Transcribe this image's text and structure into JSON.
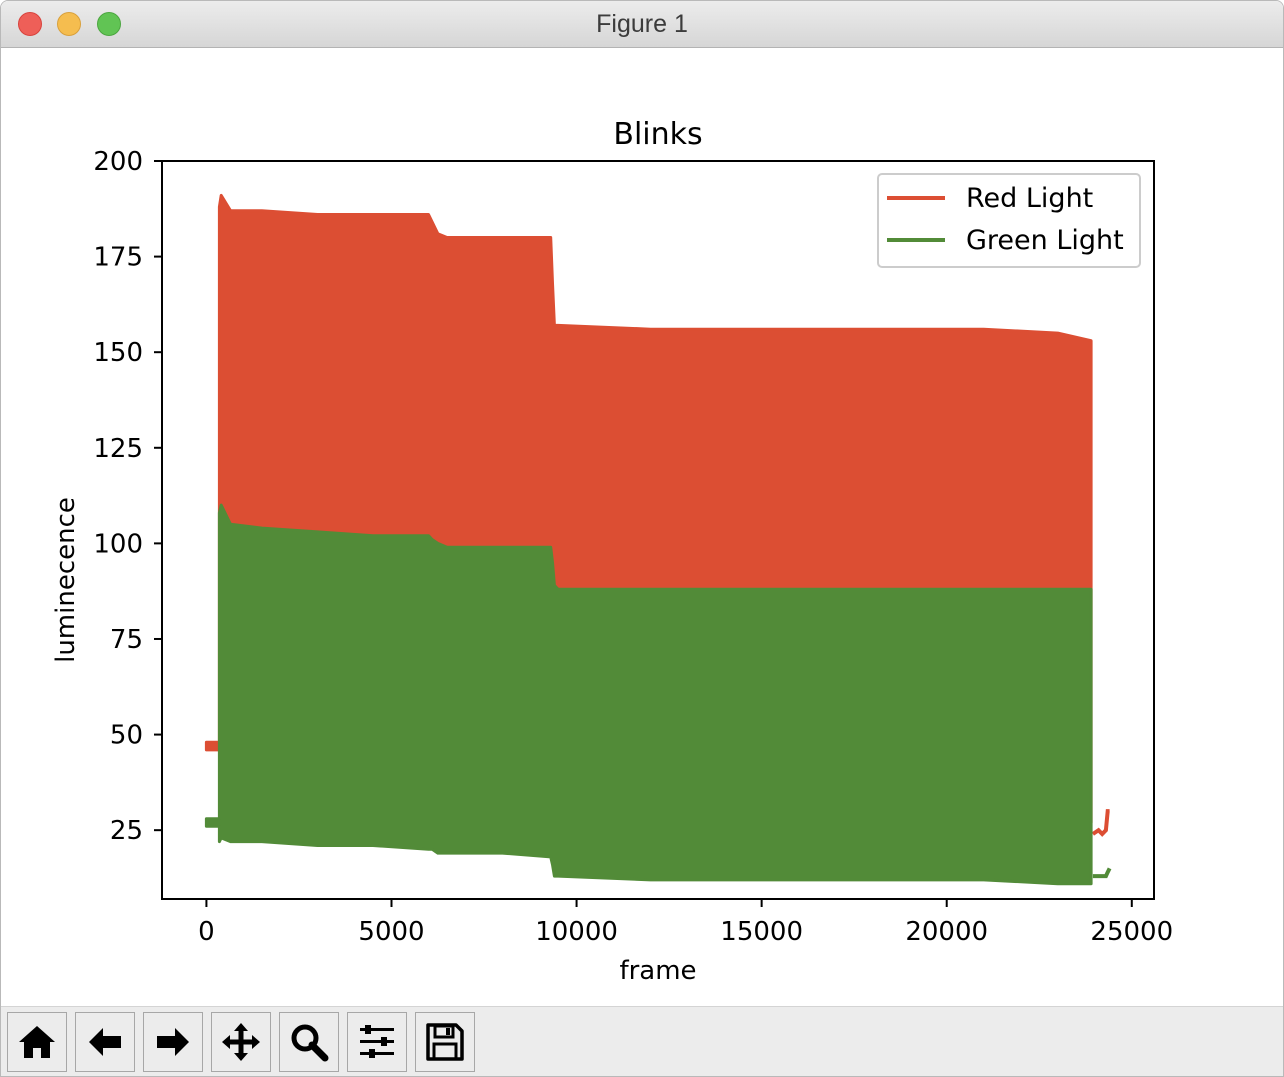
{
  "window": {
    "title": "Figure 1"
  },
  "toolbar": {
    "buttons": [
      {
        "name": "home-button",
        "icon": "home-icon"
      },
      {
        "name": "back-button",
        "icon": "arrow-left-icon"
      },
      {
        "name": "forward-button",
        "icon": "arrow-right-icon"
      },
      {
        "name": "pan-button",
        "icon": "move-icon"
      },
      {
        "name": "zoom-button",
        "icon": "magnifier-icon"
      },
      {
        "name": "configure-subplots-button",
        "icon": "sliders-icon"
      },
      {
        "name": "save-button",
        "icon": "floppy-disk-icon"
      }
    ]
  },
  "colors": {
    "red": "#dc4e33",
    "green": "#528b38",
    "axis": "#000000"
  },
  "chart_data": {
    "type": "area",
    "title": "Blinks",
    "xlabel": "frame",
    "ylabel": "luminecence",
    "xlim": [
      -1200,
      25600
    ],
    "ylim": [
      7,
      200
    ],
    "xticks": [
      0,
      5000,
      10000,
      15000,
      20000,
      25000
    ],
    "xtick_labels": [
      "0",
      "5000",
      "10000",
      "15000",
      "20000",
      "25000"
    ],
    "yticks": [
      25,
      50,
      75,
      100,
      125,
      150,
      175,
      200
    ],
    "ytick_labels": [
      "25",
      "50",
      "75",
      "100",
      "125",
      "150",
      "175",
      "200"
    ],
    "legend": {
      "position": "top-right",
      "entries": [
        "Red Light",
        "Green Light"
      ]
    },
    "series": [
      {
        "name": "Red Light",
        "color": "#dc4e33",
        "envelope_x": [
          0,
          350,
          350,
          400,
          650,
          1500,
          3000,
          4500,
          6000,
          6100,
          6250,
          6500,
          8000,
          9300,
          9350,
          9400,
          9500,
          12000,
          15000,
          18000,
          21000,
          23000,
          23900,
          23900
        ],
        "envelope_upper": [
          48,
          48,
          188,
          191,
          187,
          187,
          186,
          186,
          186,
          184,
          181,
          180,
          180,
          180,
          168,
          157,
          157,
          156,
          156,
          156,
          156,
          155,
          153,
          48
        ],
        "envelope_lower": [
          46,
          46,
          103,
          108,
          105,
          104,
          103,
          102,
          102,
          101,
          100,
          99,
          99,
          99,
          95,
          90,
          88,
          88,
          88,
          88,
          88,
          88,
          88,
          27
        ],
        "tail_x": [
          23950,
          24100,
          24200,
          24300,
          24350,
          24400
        ],
        "tail_y": [
          24,
          25,
          24,
          25,
          30,
          30
        ]
      },
      {
        "name": "Green Light",
        "color": "#528b38",
        "envelope_x": [
          0,
          350,
          350,
          400,
          650,
          1500,
          3000,
          4500,
          6000,
          6100,
          6250,
          6500,
          8000,
          9300,
          9350,
          9400,
          9500,
          12000,
          15000,
          18000,
          21000,
          23000,
          23900,
          23900
        ],
        "envelope_upper": [
          28,
          28,
          108,
          110,
          105,
          104,
          103,
          102,
          102,
          101,
          100,
          99,
          99,
          99,
          95,
          89,
          88,
          88,
          88,
          88,
          88,
          88,
          88,
          28
        ],
        "envelope_lower": [
          26,
          26,
          22,
          23,
          22,
          22,
          21,
          21,
          20,
          20,
          19,
          19,
          19,
          18,
          16,
          13,
          13,
          12,
          12,
          12,
          12,
          11,
          11,
          12
        ],
        "tail_x": [
          23950,
          24100,
          24200,
          24300,
          24350,
          24400
        ],
        "tail_y": [
          13,
          13,
          13,
          13,
          14,
          15
        ]
      }
    ]
  }
}
